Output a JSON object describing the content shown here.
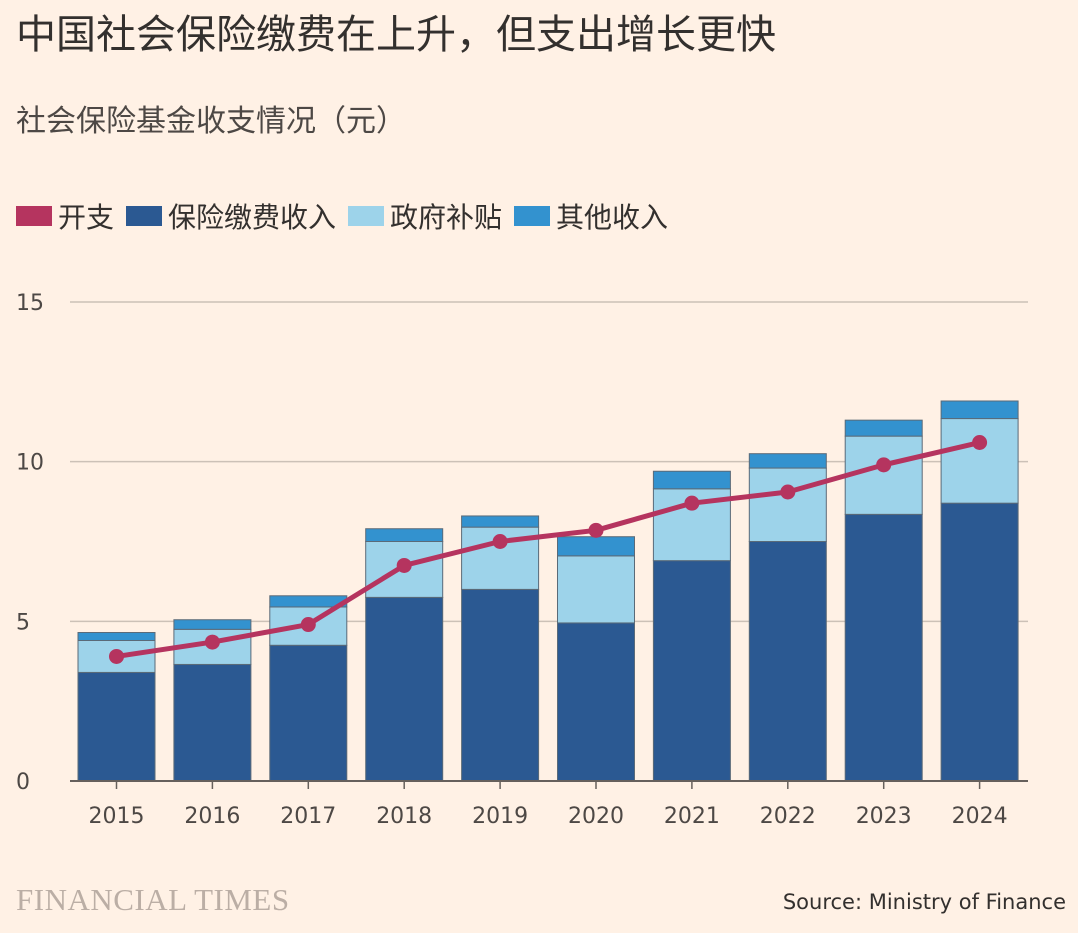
{
  "title": "中国社会保险缴费在上升，但支出增长更快",
  "subtitle": "社会保险基金收支情况（元）",
  "legend": [
    {
      "label": "开支",
      "color": "#b5345f",
      "kind": "line"
    },
    {
      "label": "保险缴费收入",
      "color": "#2b5992",
      "kind": "bar"
    },
    {
      "label": "政府补贴",
      "color": "#9dd3ea",
      "kind": "bar"
    },
    {
      "label": "其他收入",
      "color": "#3392cf",
      "kind": "bar"
    }
  ],
  "source": "Source: Ministry of Finance",
  "brand": "FINANCIAL TIMES",
  "chart_data": {
    "type": "bar",
    "stacked": true,
    "categories": [
      "2015",
      "2016",
      "2017",
      "2018",
      "2019",
      "2020",
      "2021",
      "2022",
      "2023",
      "2024"
    ],
    "series": [
      {
        "name": "保险缴费收入",
        "type": "bar",
        "color": "#2b5992",
        "values": [
          3.4,
          3.65,
          4.25,
          5.75,
          6.0,
          4.95,
          6.9,
          7.5,
          8.35,
          8.7
        ]
      },
      {
        "name": "政府补贴",
        "type": "bar",
        "color": "#9dd3ea",
        "values": [
          1.0,
          1.1,
          1.2,
          1.75,
          1.95,
          2.1,
          2.25,
          2.3,
          2.45,
          2.65
        ]
      },
      {
        "name": "其他收入",
        "type": "bar",
        "color": "#3392cf",
        "values": [
          0.25,
          0.3,
          0.35,
          0.4,
          0.35,
          0.6,
          0.55,
          0.45,
          0.5,
          0.55
        ]
      },
      {
        "name": "开支",
        "type": "line",
        "color": "#b5345f",
        "values": [
          3.9,
          4.35,
          4.9,
          6.75,
          7.5,
          7.85,
          8.7,
          9.05,
          9.9,
          10.6
        ]
      }
    ],
    "yticks": [
      0,
      5,
      10,
      15
    ],
    "ylim": [
      0,
      15
    ],
    "grid": true,
    "legend_position": "top-left"
  }
}
